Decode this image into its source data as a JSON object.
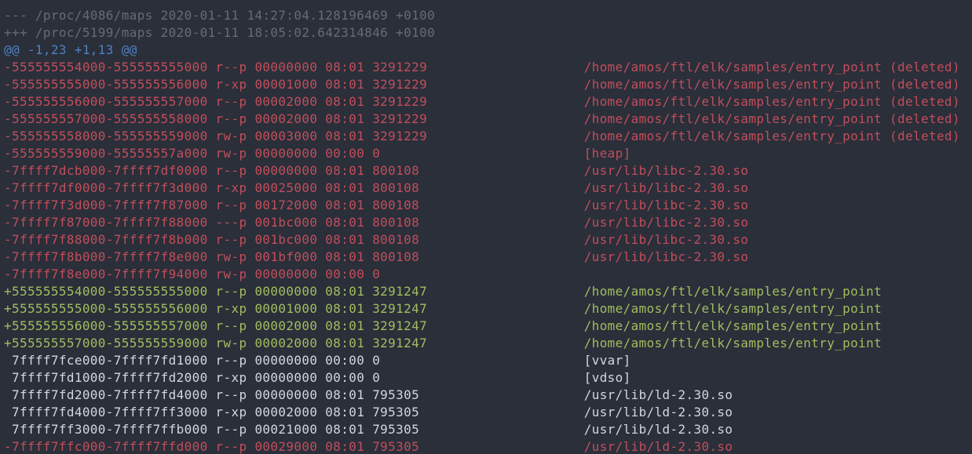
{
  "colors": {
    "background": "#2a2f3a",
    "removed": "#c14e5a",
    "added": "#a3bd5e",
    "context": "#d2d6de",
    "header": "#646c79",
    "hunk": "#5181c2"
  },
  "terminal": {
    "description": "unified diff of /proc maps",
    "path_column": 73,
    "lines": [
      {
        "type": "header",
        "text": "--- /proc/4086/maps 2020-01-11 14:27:04.128196469 +0100"
      },
      {
        "type": "header",
        "text": "+++ /proc/5199/maps 2020-01-11 18:05:02.642314846 +0100"
      },
      {
        "type": "hunk",
        "text": "@@ -1,23 +1,13 @@"
      },
      {
        "type": "removed",
        "sign": "-",
        "address": "555555554000-555555555000",
        "perms": "r--p",
        "offset": "00000000",
        "dev": "08:01",
        "inode": "3291229",
        "path": "/home/amos/ftl/elk/samples/entry_point (deleted)"
      },
      {
        "type": "removed",
        "sign": "-",
        "address": "555555555000-555555556000",
        "perms": "r-xp",
        "offset": "00001000",
        "dev": "08:01",
        "inode": "3291229",
        "path": "/home/amos/ftl/elk/samples/entry_point (deleted)"
      },
      {
        "type": "removed",
        "sign": "-",
        "address": "555555556000-555555557000",
        "perms": "r--p",
        "offset": "00002000",
        "dev": "08:01",
        "inode": "3291229",
        "path": "/home/amos/ftl/elk/samples/entry_point (deleted)"
      },
      {
        "type": "removed",
        "sign": "-",
        "address": "555555557000-555555558000",
        "perms": "r--p",
        "offset": "00002000",
        "dev": "08:01",
        "inode": "3291229",
        "path": "/home/amos/ftl/elk/samples/entry_point (deleted)"
      },
      {
        "type": "removed",
        "sign": "-",
        "address": "555555558000-555555559000",
        "perms": "rw-p",
        "offset": "00003000",
        "dev": "08:01",
        "inode": "3291229",
        "path": "/home/amos/ftl/elk/samples/entry_point (deleted)"
      },
      {
        "type": "removed",
        "sign": "-",
        "address": "555555559000-55555557a000",
        "perms": "rw-p",
        "offset": "00000000",
        "dev": "00:00",
        "inode": "0",
        "path": "[heap]"
      },
      {
        "type": "removed",
        "sign": "-",
        "address": "7ffff7dcb000-7ffff7df0000",
        "perms": "r--p",
        "offset": "00000000",
        "dev": "08:01",
        "inode": "800108",
        "path": "/usr/lib/libc-2.30.so"
      },
      {
        "type": "removed",
        "sign": "-",
        "address": "7ffff7df0000-7ffff7f3d000",
        "perms": "r-xp",
        "offset": "00025000",
        "dev": "08:01",
        "inode": "800108",
        "path": "/usr/lib/libc-2.30.so"
      },
      {
        "type": "removed",
        "sign": "-",
        "address": "7ffff7f3d000-7ffff7f87000",
        "perms": "r--p",
        "offset": "00172000",
        "dev": "08:01",
        "inode": "800108",
        "path": "/usr/lib/libc-2.30.so"
      },
      {
        "type": "removed",
        "sign": "-",
        "address": "7ffff7f87000-7ffff7f88000",
        "perms": "---p",
        "offset": "001bc000",
        "dev": "08:01",
        "inode": "800108",
        "path": "/usr/lib/libc-2.30.so"
      },
      {
        "type": "removed",
        "sign": "-",
        "address": "7ffff7f88000-7ffff7f8b000",
        "perms": "r--p",
        "offset": "001bc000",
        "dev": "08:01",
        "inode": "800108",
        "path": "/usr/lib/libc-2.30.so"
      },
      {
        "type": "removed",
        "sign": "-",
        "address": "7ffff7f8b000-7ffff7f8e000",
        "perms": "rw-p",
        "offset": "001bf000",
        "dev": "08:01",
        "inode": "800108",
        "path": "/usr/lib/libc-2.30.so"
      },
      {
        "type": "removed",
        "sign": "-",
        "address": "7ffff7f8e000-7ffff7f94000",
        "perms": "rw-p",
        "offset": "00000000",
        "dev": "00:00",
        "inode": "0",
        "path": ""
      },
      {
        "type": "added",
        "sign": "+",
        "address": "555555554000-555555555000",
        "perms": "r--p",
        "offset": "00000000",
        "dev": "08:01",
        "inode": "3291247",
        "path": "/home/amos/ftl/elk/samples/entry_point"
      },
      {
        "type": "added",
        "sign": "+",
        "address": "555555555000-555555556000",
        "perms": "r-xp",
        "offset": "00001000",
        "dev": "08:01",
        "inode": "3291247",
        "path": "/home/amos/ftl/elk/samples/entry_point"
      },
      {
        "type": "added",
        "sign": "+",
        "address": "555555556000-555555557000",
        "perms": "r--p",
        "offset": "00002000",
        "dev": "08:01",
        "inode": "3291247",
        "path": "/home/amos/ftl/elk/samples/entry_point"
      },
      {
        "type": "added",
        "sign": "+",
        "address": "555555557000-555555559000",
        "perms": "rw-p",
        "offset": "00002000",
        "dev": "08:01",
        "inode": "3291247",
        "path": "/home/amos/ftl/elk/samples/entry_point"
      },
      {
        "type": "context",
        "sign": " ",
        "address": "7ffff7fce000-7ffff7fd1000",
        "perms": "r--p",
        "offset": "00000000",
        "dev": "00:00",
        "inode": "0",
        "path": "[vvar]"
      },
      {
        "type": "context",
        "sign": " ",
        "address": "7ffff7fd1000-7ffff7fd2000",
        "perms": "r-xp",
        "offset": "00000000",
        "dev": "00:00",
        "inode": "0",
        "path": "[vdso]"
      },
      {
        "type": "context",
        "sign": " ",
        "address": "7ffff7fd2000-7ffff7fd4000",
        "perms": "r--p",
        "offset": "00000000",
        "dev": "08:01",
        "inode": "795305",
        "path": "/usr/lib/ld-2.30.so"
      },
      {
        "type": "context",
        "sign": " ",
        "address": "7ffff7fd4000-7ffff7ff3000",
        "perms": "r-xp",
        "offset": "00002000",
        "dev": "08:01",
        "inode": "795305",
        "path": "/usr/lib/ld-2.30.so"
      },
      {
        "type": "context",
        "sign": " ",
        "address": "7ffff7ff3000-7ffff7ffb000",
        "perms": "r--p",
        "offset": "00021000",
        "dev": "08:01",
        "inode": "795305",
        "path": "/usr/lib/ld-2.30.so"
      },
      {
        "type": "removed",
        "sign": "-",
        "address": "7ffff7ffc000-7ffff7ffd000",
        "perms": "r--p",
        "offset": "00029000",
        "dev": "08:01",
        "inode": "795305",
        "path": "/usr/lib/ld-2.30.so"
      }
    ]
  }
}
